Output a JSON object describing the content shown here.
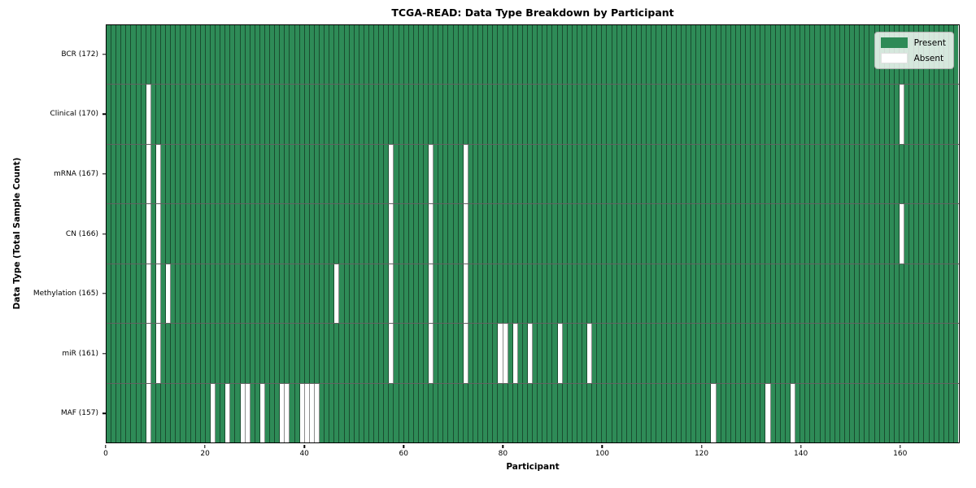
{
  "colors": {
    "present": "#2e8b57",
    "absent": "#ffffff",
    "cell_edge": "rgba(0,0,0,0.45)",
    "row_edge": "rgba(0,0,0,0.62)",
    "plot_border": "#000000",
    "legend_border": "#b0b0b0"
  },
  "chart_data": {
    "type": "heatmap",
    "title": "TCGA-READ: Data Type Breakdown by Participant",
    "xlabel": "Participant",
    "ylabel": "Data Type (Total Sample Count)",
    "x_ticks": [
      0,
      20,
      40,
      60,
      80,
      100,
      120,
      140,
      160
    ],
    "x_range": [
      0,
      172
    ],
    "n_participants": 172,
    "legend_position": "upper right",
    "legend": [
      {
        "label": "Present",
        "color": "#2e8b57"
      },
      {
        "label": "Absent",
        "color": "#ffffff"
      }
    ],
    "rows": [
      {
        "label": "BCR (172)",
        "data_type": "BCR",
        "present_count": 172,
        "absent_participants": []
      },
      {
        "label": "Clinical (170)",
        "data_type": "Clinical",
        "present_count": 170,
        "absent_participants": [
          8,
          160
        ]
      },
      {
        "label": "mRNA (167)",
        "data_type": "mRNA",
        "present_count": 167,
        "absent_participants": [
          8,
          10,
          57,
          65,
          72
        ]
      },
      {
        "label": "CN (166)",
        "data_type": "CN",
        "present_count": 166,
        "absent_participants": [
          8,
          10,
          57,
          65,
          72,
          160
        ]
      },
      {
        "label": "Methylation (165)",
        "data_type": "Methylation",
        "present_count": 165,
        "absent_participants": [
          8,
          10,
          12,
          46,
          57,
          65,
          72
        ]
      },
      {
        "label": "miR (161)",
        "data_type": "miR",
        "present_count": 161,
        "absent_participants": [
          8,
          10,
          57,
          65,
          72,
          79,
          80,
          82,
          85,
          91,
          97
        ]
      },
      {
        "label": "MAF (157)",
        "data_type": "MAF",
        "present_count": 157,
        "absent_participants": [
          8,
          21,
          24,
          27,
          28,
          31,
          35,
          36,
          39,
          40,
          41,
          42,
          122,
          133,
          138
        ]
      }
    ]
  }
}
